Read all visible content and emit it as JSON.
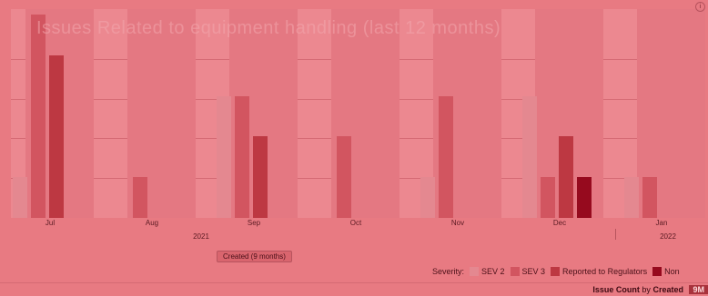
{
  "colors": {
    "sev2": "#e48890",
    "sev3": "#d25560",
    "reported": "#bd3842",
    "nonreported": "#960a1e"
  },
  "background_title": "Issues Related to equipment handling (last 12 months)",
  "months": [
    "Jul",
    "Aug",
    "Sep",
    "Oct",
    "Nov",
    "Dec",
    "Jan"
  ],
  "years": [
    "2021",
    "2022"
  ],
  "axis_tag": "Created (9 months)",
  "legend": {
    "title": "Severity:",
    "items": [
      "SEV 2",
      "SEV 3",
      "Reported to Regulators",
      "Non"
    ]
  },
  "footer": {
    "metric": "Issue Count",
    "by": "by",
    "dimension": "Created",
    "badge": "9M"
  },
  "chart_data": {
    "type": "bar",
    "categories": [
      "Jul",
      "Aug",
      "Sep",
      "Oct",
      "Nov",
      "Dec",
      "Jan"
    ],
    "ylim": [
      0,
      5
    ],
    "series": [
      {
        "name": "SEV 2",
        "values": [
          1,
          0,
          3,
          0,
          1,
          3,
          1
        ]
      },
      {
        "name": "SEV 3",
        "values": [
          5,
          1,
          3,
          2,
          3,
          1,
          1
        ]
      },
      {
        "name": "Reported to Regulators",
        "values": [
          4,
          0,
          2,
          0,
          0,
          2,
          0
        ]
      },
      {
        "name": "Non",
        "values": [
          0,
          0,
          0,
          0,
          0,
          1,
          0
        ]
      }
    ]
  }
}
